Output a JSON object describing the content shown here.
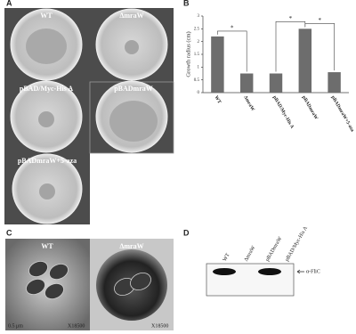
{
  "panels": {
    "A": {
      "letter": "A",
      "plates": [
        "WT",
        "ΔmraW",
        "pBAD/Myc-His A",
        "pBADmraW",
        "pBADmraW+5-aza"
      ]
    },
    "B": {
      "letter": "B"
    },
    "C": {
      "letter": "C",
      "labels": [
        "WT",
        "ΔmraW"
      ],
      "scale": "0.5 μm",
      "magnification": [
        "X18500",
        "X18500"
      ]
    },
    "D": {
      "letter": "D",
      "lanes": [
        "WT",
        "ΔmraW",
        "pBADmraW",
        "pBAD/Myc-His A"
      ],
      "band": "α-FliC"
    }
  },
  "chart_data": {
    "type": "bar",
    "y_label": "Growth radius (cm)",
    "categories": [
      "WT",
      "ΔmraW",
      "pBAD/Myc-His A",
      "pBADmraW",
      "pBADmraW+5-aza"
    ],
    "values": [
      2.2,
      0.75,
      0.75,
      2.5,
      0.8
    ],
    "color": "#6d6d6d",
    "ylim": [
      0,
      3
    ],
    "yticks": [
      0,
      0.5,
      1,
      1.5,
      2,
      2.5,
      3
    ],
    "annotations": [
      "*",
      "*",
      "*"
    ]
  }
}
